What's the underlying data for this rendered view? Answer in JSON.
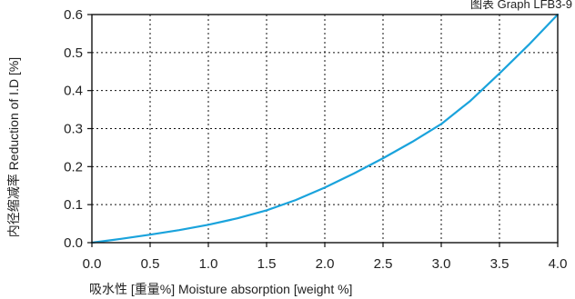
{
  "chart_data": {
    "type": "line",
    "caption": "图表 Graph LFB3-9",
    "xlabel": "吸水性 [重量%] Moisture absorption [weight %]",
    "ylabel": "内径缩减率 Reduction of I.D [%]",
    "xlim": [
      0,
      4
    ],
    "ylim": [
      0,
      0.6
    ],
    "x_ticks": [
      "0.0",
      "0.5",
      "1.0",
      "1.5",
      "2.0",
      "2.5",
      "3.0",
      "3.5",
      "4.0"
    ],
    "y_ticks": [
      "0.0",
      "0.1",
      "0.2",
      "0.3",
      "0.4",
      "0.5",
      "0.6"
    ],
    "grid": true,
    "series": [
      {
        "color": "#1aa3dc",
        "x": [
          0.0,
          0.25,
          0.5,
          0.75,
          1.0,
          1.25,
          1.5,
          1.75,
          2.0,
          2.25,
          2.5,
          2.75,
          3.0,
          3.25,
          3.5,
          3.75,
          4.0
        ],
        "y": [
          0.0,
          0.01,
          0.021,
          0.033,
          0.047,
          0.064,
          0.085,
          0.112,
          0.145,
          0.182,
          0.222,
          0.265,
          0.312,
          0.373,
          0.445,
          0.52,
          0.6
        ]
      }
    ]
  }
}
